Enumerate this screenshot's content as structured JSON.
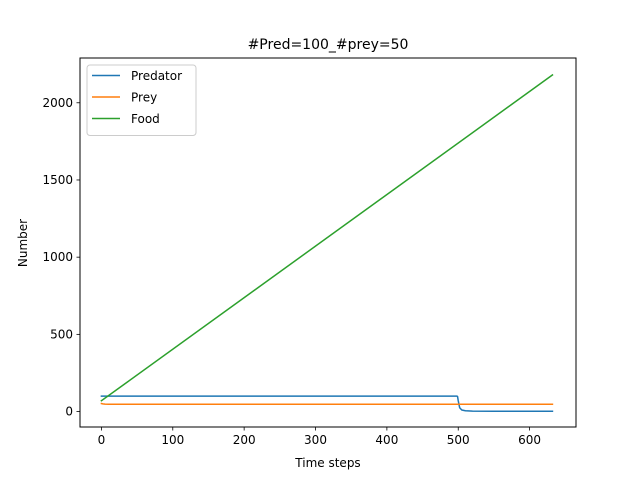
{
  "chart_data": {
    "type": "line",
    "title": "#Pred=100_#prey=50",
    "xlabel": "Time steps",
    "ylabel": "Number",
    "xlim": [
      -30,
      665
    ],
    "ylim": [
      -100,
      2290
    ],
    "xticks": [
      0,
      100,
      200,
      300,
      400,
      500,
      600
    ],
    "yticks": [
      0,
      500,
      1000,
      1500,
      2000
    ],
    "legend_position": "upper-left",
    "series": [
      {
        "name": "Predator",
        "color": "#1f77b4",
        "x": [
          0,
          100,
          200,
          300,
          400,
          498,
          499,
          500,
          502,
          505,
          510,
          520,
          550,
          600,
          632
        ],
        "y": [
          100,
          100,
          100,
          100,
          100,
          100,
          98,
          70,
          25,
          10,
          5,
          3,
          2,
          2,
          2
        ]
      },
      {
        "name": "Prey",
        "color": "#ff7f0e",
        "x": [
          0,
          2,
          5,
          10,
          20,
          100,
          200,
          300,
          400,
          500,
          600,
          632
        ],
        "y": [
          52,
          50,
          48,
          47,
          47,
          47,
          47,
          47,
          47,
          47,
          47,
          47
        ]
      },
      {
        "name": "Food",
        "color": "#2ca02c",
        "x": [
          0,
          632
        ],
        "y": [
          70,
          2180
        ]
      }
    ]
  }
}
